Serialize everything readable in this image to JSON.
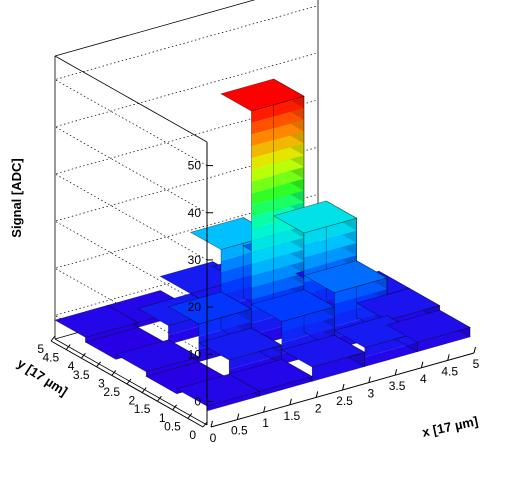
{
  "chart_data": {
    "type": "lego3d",
    "zlabel": "Signal [ADC]",
    "xlabel": "x [17 µm]",
    "ylabel": "y [17 µm]",
    "xlim": [
      0,
      5
    ],
    "ylim": [
      0,
      5
    ],
    "zlim": [
      -5,
      55
    ],
    "x_ticks": [
      "0",
      "0.5",
      "1",
      "1.5",
      "2",
      "2.5",
      "3",
      "3.5",
      "4",
      "4.5",
      "5"
    ],
    "y_ticks": [
      "0",
      "0.5",
      "1",
      "1.5",
      "2",
      "2.5",
      "3",
      "3.5",
      "4",
      "4.5",
      "5"
    ],
    "z_ticks": [
      "0",
      "10",
      "20",
      "30",
      "40",
      "50"
    ],
    "x_bins": [
      0,
      1,
      2,
      3,
      4
    ],
    "y_bins": [
      0,
      1,
      2,
      3,
      4
    ],
    "values": [
      [
        -1,
        -2,
        -1,
        -2,
        -1
      ],
      [
        -1,
        2,
        6,
        2,
        -1
      ],
      [
        1,
        7,
        48,
        15,
        2
      ],
      [
        2,
        10,
        19,
        9,
        1
      ],
      [
        0,
        1,
        1,
        0,
        0
      ]
    ],
    "value_layout": "values[x_bin][y_bin]",
    "palette": "rainbow"
  }
}
